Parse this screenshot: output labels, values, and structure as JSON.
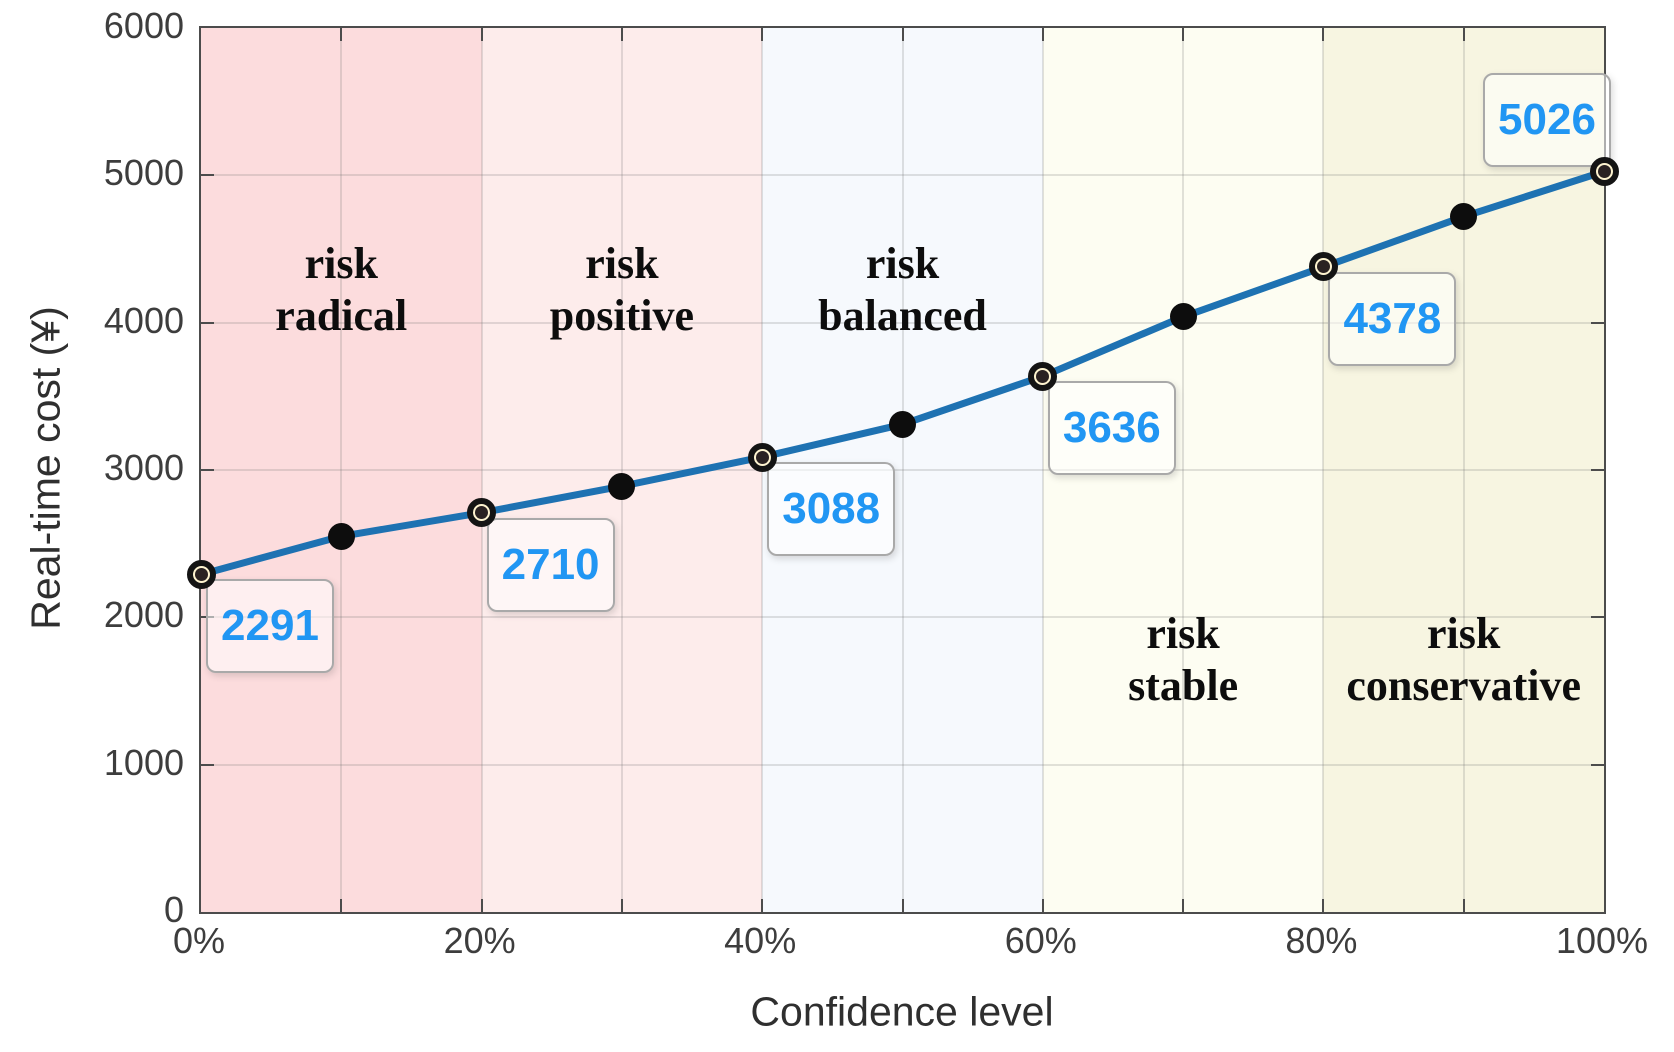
{
  "chart_data": {
    "type": "line",
    "xlabel": "Confidence level",
    "ylabel": "Real-time cost (¥)",
    "xlim": [
      0,
      100
    ],
    "ylim": [
      0,
      6000
    ],
    "x_tick_values": [
      0,
      20,
      40,
      60,
      80,
      100
    ],
    "x_tick_labels": [
      "0%",
      "20%",
      "40%",
      "60%",
      "80%",
      "100%"
    ],
    "y_tick_values": [
      0,
      1000,
      2000,
      3000,
      4000,
      5000,
      6000
    ],
    "y_tick_labels": [
      "0",
      "1000",
      "2000",
      "3000",
      "4000",
      "5000",
      "6000"
    ],
    "grid": true,
    "legend_position": "none",
    "line_color": "#1e72b2",
    "annotation_text_color": "#2196f3",
    "series": [
      {
        "name": "real-time cost",
        "x": [
          0,
          10,
          20,
          30,
          40,
          50,
          60,
          70,
          80,
          90,
          100
        ],
        "values": [
          2291,
          2550,
          2710,
          2890,
          3088,
          3310,
          3636,
          4040,
          4378,
          4720,
          5026
        ]
      }
    ],
    "annotations": [
      {
        "x": 0,
        "value": "2291",
        "side": "below-right"
      },
      {
        "x": 20,
        "value": "2710",
        "side": "below-right"
      },
      {
        "x": 40,
        "value": "3088",
        "side": "below-right"
      },
      {
        "x": 60,
        "value": "3636",
        "side": "below-right"
      },
      {
        "x": 80,
        "value": "4378",
        "side": "below-right"
      },
      {
        "x": 100,
        "value": "5026",
        "side": "above-left"
      }
    ],
    "regions": [
      {
        "label": "risk radical",
        "from": 0,
        "to": 20,
        "color": "#fcdcdd",
        "label_pos": "upper"
      },
      {
        "label": "risk positive",
        "from": 20,
        "to": 40,
        "color": "#fdeceb",
        "label_pos": "upper"
      },
      {
        "label": "risk balanced",
        "from": 40,
        "to": 60,
        "color": "#f6f9fd",
        "label_pos": "upper"
      },
      {
        "label": "risk stable",
        "from": 60,
        "to": 80,
        "color": "#fdfdf2",
        "label_pos": "lower"
      },
      {
        "label": "risk conservative",
        "from": 80,
        "to": 100,
        "color": "#f7f5e1",
        "label_pos": "lower"
      }
    ]
  }
}
